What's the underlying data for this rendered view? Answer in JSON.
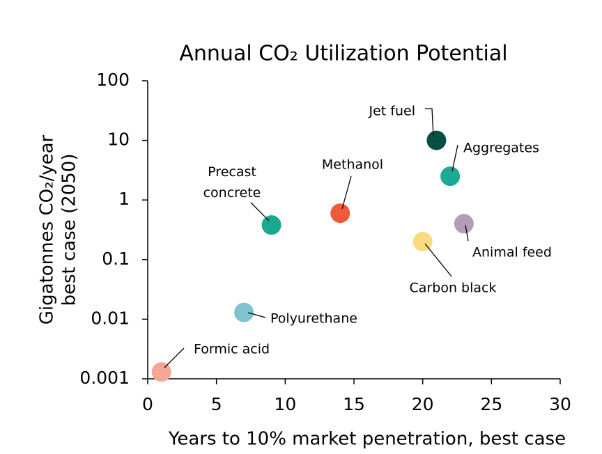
{
  "chart_data": {
    "type": "scatter",
    "title": "Annual CO₂ Utilization Potential",
    "xlabel": "Years to 10% market penetration, best case",
    "ylabel": [
      "Gigatonnes CO₂/year",
      "best case (2050)"
    ],
    "xlim": [
      0,
      30
    ],
    "xticks": [
      0,
      5,
      10,
      15,
      20,
      25,
      30
    ],
    "ylim": [
      0.001,
      100
    ],
    "yticks": [
      0.001,
      0.01,
      0.1,
      1,
      10,
      100
    ],
    "yscale": "log",
    "grid": false,
    "series": [
      {
        "name": "Formic acid",
        "color": "#f4a697",
        "x": [
          1
        ],
        "values": [
          0.0013
        ]
      },
      {
        "name": "Polyurethane",
        "color": "#7fc3d0",
        "x": [
          7
        ],
        "values": [
          0.013
        ]
      },
      {
        "name": "Precast concrete",
        "color": "#1aa98f",
        "x": [
          9
        ],
        "values": [
          0.38
        ]
      },
      {
        "name": "Methanol",
        "color": "#ef5a3a",
        "x": [
          14
        ],
        "values": [
          0.6
        ]
      },
      {
        "name": "Carbon black",
        "color": "#fbdb7f",
        "x": [
          20
        ],
        "values": [
          0.2
        ]
      },
      {
        "name": "Jet fuel",
        "color": "#0a4f45",
        "x": [
          21
        ],
        "values": [
          10
        ]
      },
      {
        "name": "Aggregates",
        "color": "#1aab94",
        "x": [
          22
        ],
        "values": [
          2.5
        ]
      },
      {
        "name": "Animal feed",
        "color": "#b39cb4",
        "x": [
          23
        ],
        "values": [
          0.4
        ]
      }
    ]
  }
}
